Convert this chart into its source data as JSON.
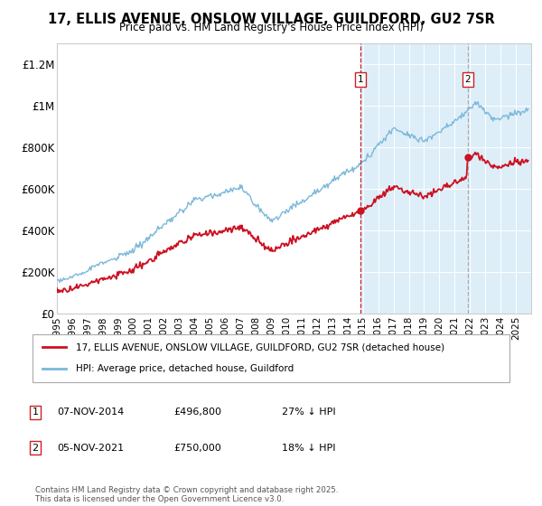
{
  "title": "17, ELLIS AVENUE, ONSLOW VILLAGE, GUILDFORD, GU2 7SR",
  "subtitle": "Price paid vs. HM Land Registry's House Price Index (HPI)",
  "ylim": [
    0,
    1300000
  ],
  "yticks": [
    0,
    200000,
    400000,
    600000,
    800000,
    1000000,
    1200000
  ],
  "ytick_labels": [
    "£0",
    "£200K",
    "£400K",
    "£600K",
    "£800K",
    "£1M",
    "£1.2M"
  ],
  "background_color": "#ffffff",
  "plot_bg_color": "#ddeef8",
  "shade_color": "#ddeef8",
  "hpi_color": "#7ab8d9",
  "price_color": "#cc1122",
  "purchase1_x": 2014.85,
  "purchase2_x": 2021.85,
  "vline1_color": "#cc2222",
  "vline2_color": "#aaaaaa",
  "legend_line1": "17, ELLIS AVENUE, ONSLOW VILLAGE, GUILDFORD, GU2 7SR (detached house)",
  "legend_line2": "HPI: Average price, detached house, Guildford",
  "note": "Contains HM Land Registry data © Crown copyright and database right 2025.\nThis data is licensed under the Open Government Licence v3.0.",
  "annotation1": "1",
  "annotation2": "2",
  "xmin": 1995,
  "xmax": 2026,
  "purchase1_price": 496800,
  "purchase2_price": 750000,
  "table_rows": [
    [
      "1",
      "07-NOV-2014",
      "£496,800",
      "27% ↓ HPI"
    ],
    [
      "2",
      "05-NOV-2021",
      "£750,000",
      "18% ↓ HPI"
    ]
  ]
}
